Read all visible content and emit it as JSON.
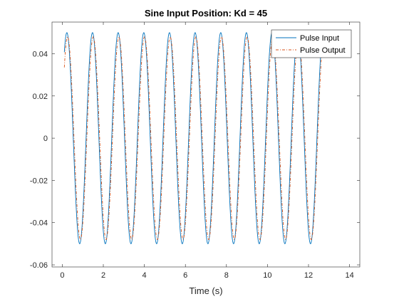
{
  "chart_data": {
    "type": "line",
    "title": "Sine Input Position: Kd = 45",
    "xlabel": "Time (s)",
    "ylabel": "",
    "xlim": [
      -0.5,
      14.5
    ],
    "ylim": [
      -0.061,
      0.055
    ],
    "xticks": [
      0,
      2,
      4,
      6,
      8,
      10,
      12,
      14
    ],
    "xtick_labels": [
      "0",
      "2",
      "4",
      "6",
      "8",
      "10",
      "12",
      "14"
    ],
    "yticks": [
      -0.06,
      -0.04,
      -0.02,
      0,
      0.02,
      0.04
    ],
    "ytick_labels": [
      "-0.06",
      "-0.04",
      "-0.02",
      "0",
      "0.02",
      "0.04"
    ],
    "grid": false,
    "legend_position": "top-right",
    "series": [
      {
        "name": "Pulse Input",
        "color": "#0072bd",
        "line_style": "solid",
        "function": "amplitude*sin(2*pi*frequency*t + phase)",
        "amplitude": 0.05,
        "frequency": 0.8,
        "phase": 0.45,
        "t_range": [
          0.1,
          12.7
        ]
      },
      {
        "name": "Pulse Output",
        "color": "#d95319",
        "line_style": "dash-dot",
        "function": "amplitude*sin(2*pi*frequency*t + phase)",
        "amplitude": 0.048,
        "frequency": 0.8,
        "phase": 0.27,
        "t_range": [
          0.1,
          12.7
        ]
      }
    ]
  }
}
